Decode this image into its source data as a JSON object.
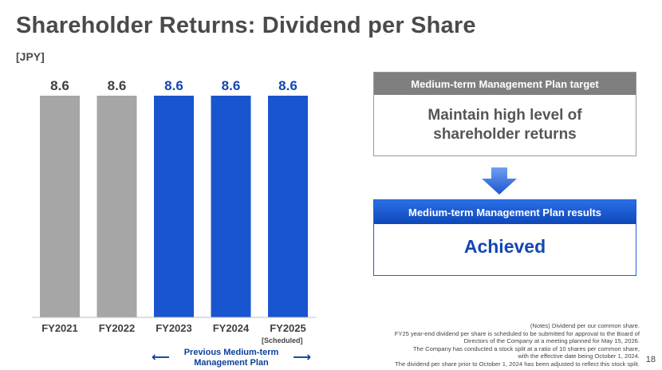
{
  "title": "Shareholder Returns: Dividend per Share",
  "unit": "[JPY]",
  "chart_data": {
    "type": "bar",
    "categories": [
      "FY2021",
      "FY2022",
      "FY2023",
      "FY2024",
      "FY2025"
    ],
    "values": [
      8.6,
      8.6,
      8.6,
      8.6,
      8.6
    ],
    "data_labels": [
      "8.6",
      "8.6",
      "8.6",
      "8.6",
      "8.6"
    ],
    "bar_colors": [
      "#a6a6a6",
      "#a6a6a6",
      "#1a55d0",
      "#1a55d0",
      "#1a55d0"
    ],
    "label_colors": [
      "#404040",
      "#404040",
      "#1346b5",
      "#1346b5",
      "#1346b5"
    ],
    "ylim": [
      0,
      8.6
    ],
    "grid": false
  },
  "scheduled_note": "[Scheduled]",
  "previous_plan_label": "Previous Medium-term\nManagement Plan",
  "target": {
    "header": "Medium-term Management Plan target",
    "body": "Maintain high level of\nshareholder returns"
  },
  "results": {
    "header": "Medium-term Management Plan results",
    "body": "Achieved"
  },
  "notes": [
    "(Notes) Dividend per our common share.",
    "FY25 year-end dividend per share is scheduled to be submitted for approval to the Board of",
    "Directors of the Company at a meeting planned for May 15, 2026.",
    "The Company has conducted a stock split at a ratio of 10 shares per common share,",
    "with the effective date being October 1, 2024.",
    "The dividend per share prior to October 1, 2024 has been adjusted to reflect this stock split."
  ],
  "page_number": "18",
  "colors": {
    "accent_blue": "#1a55d0",
    "gray_bar": "#a6a6a6"
  }
}
